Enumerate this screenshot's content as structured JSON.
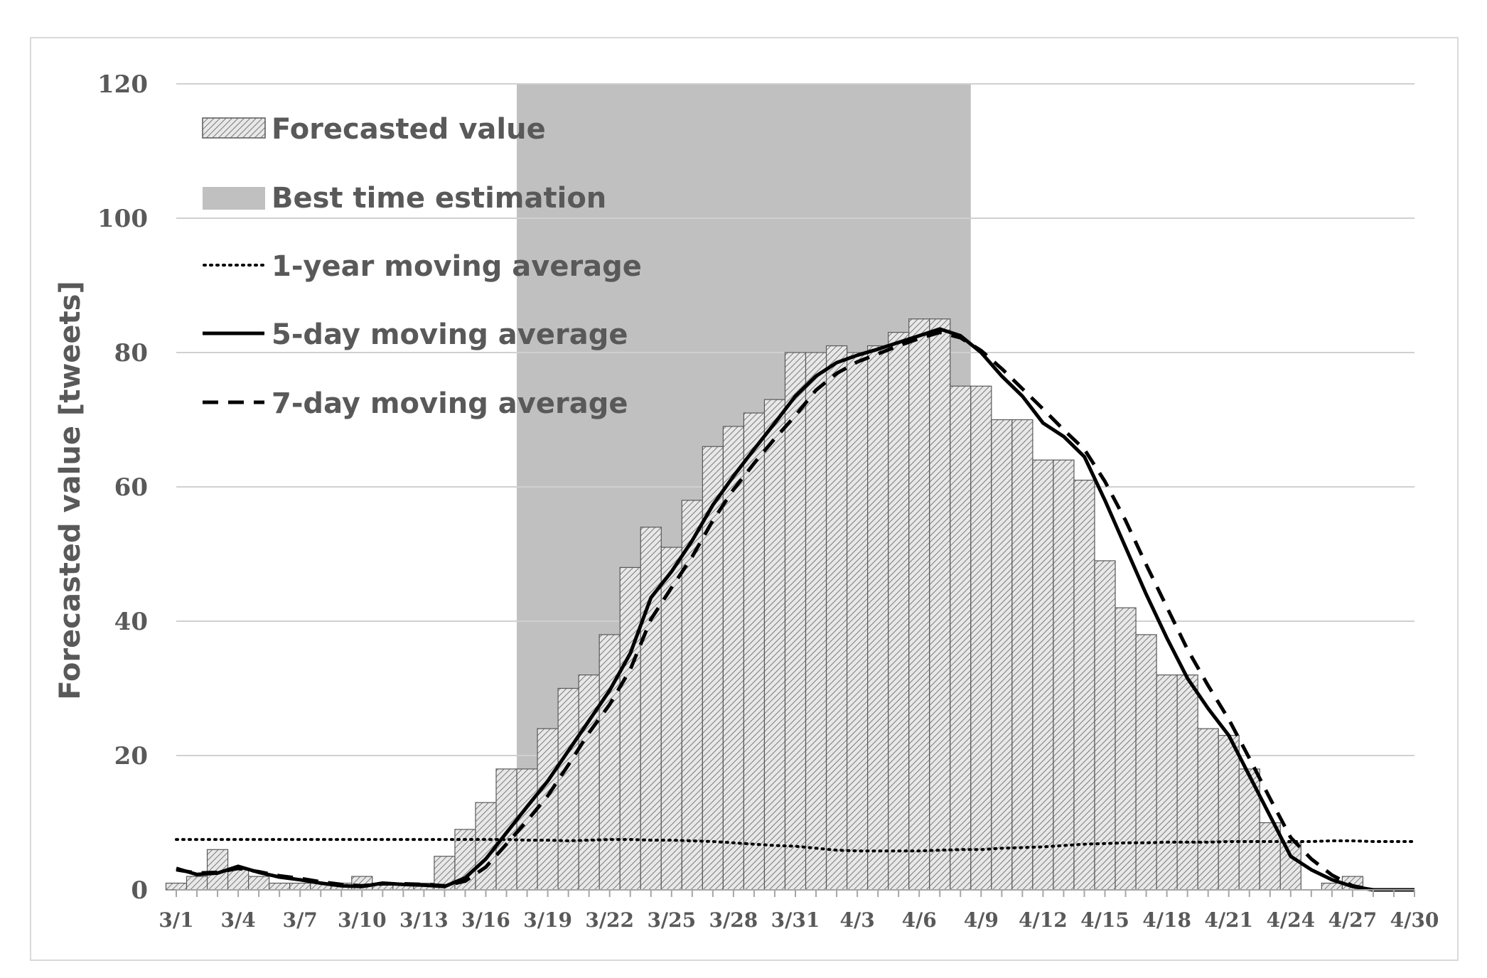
{
  "chart_data": {
    "type": "bar",
    "title": "",
    "xlabel": "",
    "ylabel": "Forecasted value [tweets]",
    "ylim": [
      0,
      120
    ],
    "yticks": [
      0,
      20,
      40,
      60,
      80,
      100,
      120
    ],
    "grid": true,
    "legend_position": "top-left",
    "xtick_labels": [
      "3/1",
      "3/4",
      "3/7",
      "3/10",
      "3/13",
      "3/16",
      "3/19",
      "3/22",
      "3/25",
      "3/28",
      "3/31",
      "4/3",
      "4/6",
      "4/9",
      "4/12",
      "4/15",
      "4/18",
      "4/21",
      "4/24",
      "4/27",
      "4/30"
    ],
    "categories": [
      "3/1",
      "3/2",
      "3/3",
      "3/4",
      "3/5",
      "3/6",
      "3/7",
      "3/8",
      "3/9",
      "3/10",
      "3/11",
      "3/12",
      "3/13",
      "3/14",
      "3/15",
      "3/16",
      "3/17",
      "3/18",
      "3/19",
      "3/20",
      "3/21",
      "3/22",
      "3/23",
      "3/24",
      "3/25",
      "3/26",
      "3/27",
      "3/28",
      "3/29",
      "3/30",
      "3/31",
      "4/1",
      "4/2",
      "4/3",
      "4/4",
      "4/5",
      "4/6",
      "4/7",
      "4/8",
      "4/9",
      "4/10",
      "4/11",
      "4/12",
      "4/13",
      "4/14",
      "4/15",
      "4/16",
      "4/17",
      "4/18",
      "4/19",
      "4/20",
      "4/21",
      "4/22",
      "4/23",
      "4/24",
      "4/25",
      "4/26",
      "4/27",
      "4/28",
      "4/29",
      "4/30"
    ],
    "highlight_span": {
      "name": "Best time estimation",
      "start": "3/18",
      "end": "4/8",
      "color": "#c0c0c0"
    },
    "series": [
      {
        "name": "Forecasted value",
        "kind": "bar",
        "pattern": "hatched",
        "values": [
          1,
          2,
          6,
          3,
          2,
          1,
          1,
          1,
          1,
          2,
          1,
          1,
          1,
          5,
          9,
          13,
          18,
          18,
          24,
          30,
          32,
          38,
          48,
          54,
          51,
          58,
          66,
          69,
          71,
          73,
          80,
          80,
          81,
          80,
          81,
          83,
          85,
          85,
          75,
          75,
          70,
          70,
          64,
          64,
          61,
          49,
          42,
          38,
          32,
          32,
          24,
          23,
          18,
          10,
          7,
          0,
          1,
          2,
          0,
          0,
          0
        ]
      },
      {
        "name": "1-year moving average",
        "kind": "line",
        "style": "dotted",
        "values": [
          7.5,
          7.5,
          7.5,
          7.5,
          7.5,
          7.5,
          7.5,
          7.5,
          7.5,
          7.5,
          7.5,
          7.5,
          7.5,
          7.5,
          7.5,
          7.5,
          7.5,
          7.4,
          7.4,
          7.3,
          7.4,
          7.5,
          7.5,
          7.4,
          7.4,
          7.3,
          7.2,
          7.0,
          6.8,
          6.6,
          6.5,
          6.2,
          5.9,
          5.8,
          5.8,
          5.8,
          5.8,
          5.9,
          6.0,
          6.0,
          6.2,
          6.3,
          6.4,
          6.6,
          6.8,
          6.9,
          7.0,
          7.0,
          7.1,
          7.1,
          7.1,
          7.2,
          7.2,
          7.2,
          7.2,
          7.2,
          7.3,
          7.3,
          7.2,
          7.2,
          7.2
        ]
      },
      {
        "name": "5-day moving average",
        "kind": "line",
        "style": "solid",
        "values": [
          3.2,
          2.3,
          2.5,
          3.5,
          2.6,
          1.9,
          1.5,
          1.0,
          0.6,
          0.5,
          1.0,
          0.8,
          0.7,
          0.5,
          1.8,
          4.6,
          8.5,
          12.4,
          16.2,
          20.7,
          25.2,
          29.7,
          35.2,
          43.5,
          47.4,
          52.0,
          57.3,
          61.6,
          65.6,
          69.5,
          73.5,
          76.5,
          78.5,
          79.6,
          80.5,
          81.5,
          82.5,
          83.5,
          82.5,
          80.0,
          76.5,
          73.5,
          69.5,
          67.5,
          64.5,
          58.0,
          51.0,
          44.0,
          37.5,
          31.5,
          27.0,
          23.0,
          17.0,
          11.0,
          5.0,
          3.0,
          1.5,
          0.5,
          0.0,
          0.0,
          0.0
        ]
      },
      {
        "name": "7-day moving average",
        "kind": "line",
        "style": "dashed",
        "values": [
          3.0,
          2.5,
          2.6,
          3.2,
          2.7,
          2.1,
          1.7,
          1.2,
          0.8,
          0.6,
          0.9,
          0.9,
          0.8,
          0.6,
          1.3,
          3.4,
          6.8,
          10.3,
          14.0,
          18.6,
          23.4,
          27.6,
          32.8,
          40.3,
          45.0,
          49.6,
          55.0,
          59.6,
          63.5,
          67.2,
          70.6,
          74.4,
          76.9,
          78.6,
          79.8,
          81.0,
          82.1,
          83.0,
          82.2,
          80.3,
          77.6,
          74.6,
          71.6,
          68.5,
          65.6,
          60.8,
          55.0,
          48.4,
          42.1,
          35.8,
          30.4,
          25.4,
          19.6,
          13.6,
          7.8,
          4.6,
          2.2,
          0.6,
          0.0,
          0.0,
          0.0
        ]
      }
    ]
  },
  "legend": [
    {
      "label": "Forecasted value",
      "swatch": "hatched-rect"
    },
    {
      "label": "Best time estimation",
      "swatch": "gray-rect"
    },
    {
      "label": "1-year moving average",
      "swatch": "dotted-line"
    },
    {
      "label": "5-day moving average",
      "swatch": "solid-line"
    },
    {
      "label": "7-day moving average",
      "swatch": "dashed-line"
    }
  ],
  "colors": {
    "bar_fill": "#e6e6e6",
    "bar_stroke": "#595959",
    "hatch": "#777777",
    "grid": "#d0d0d0",
    "axis": "#a6a6a6",
    "text": "#595959",
    "line": "#000000"
  }
}
